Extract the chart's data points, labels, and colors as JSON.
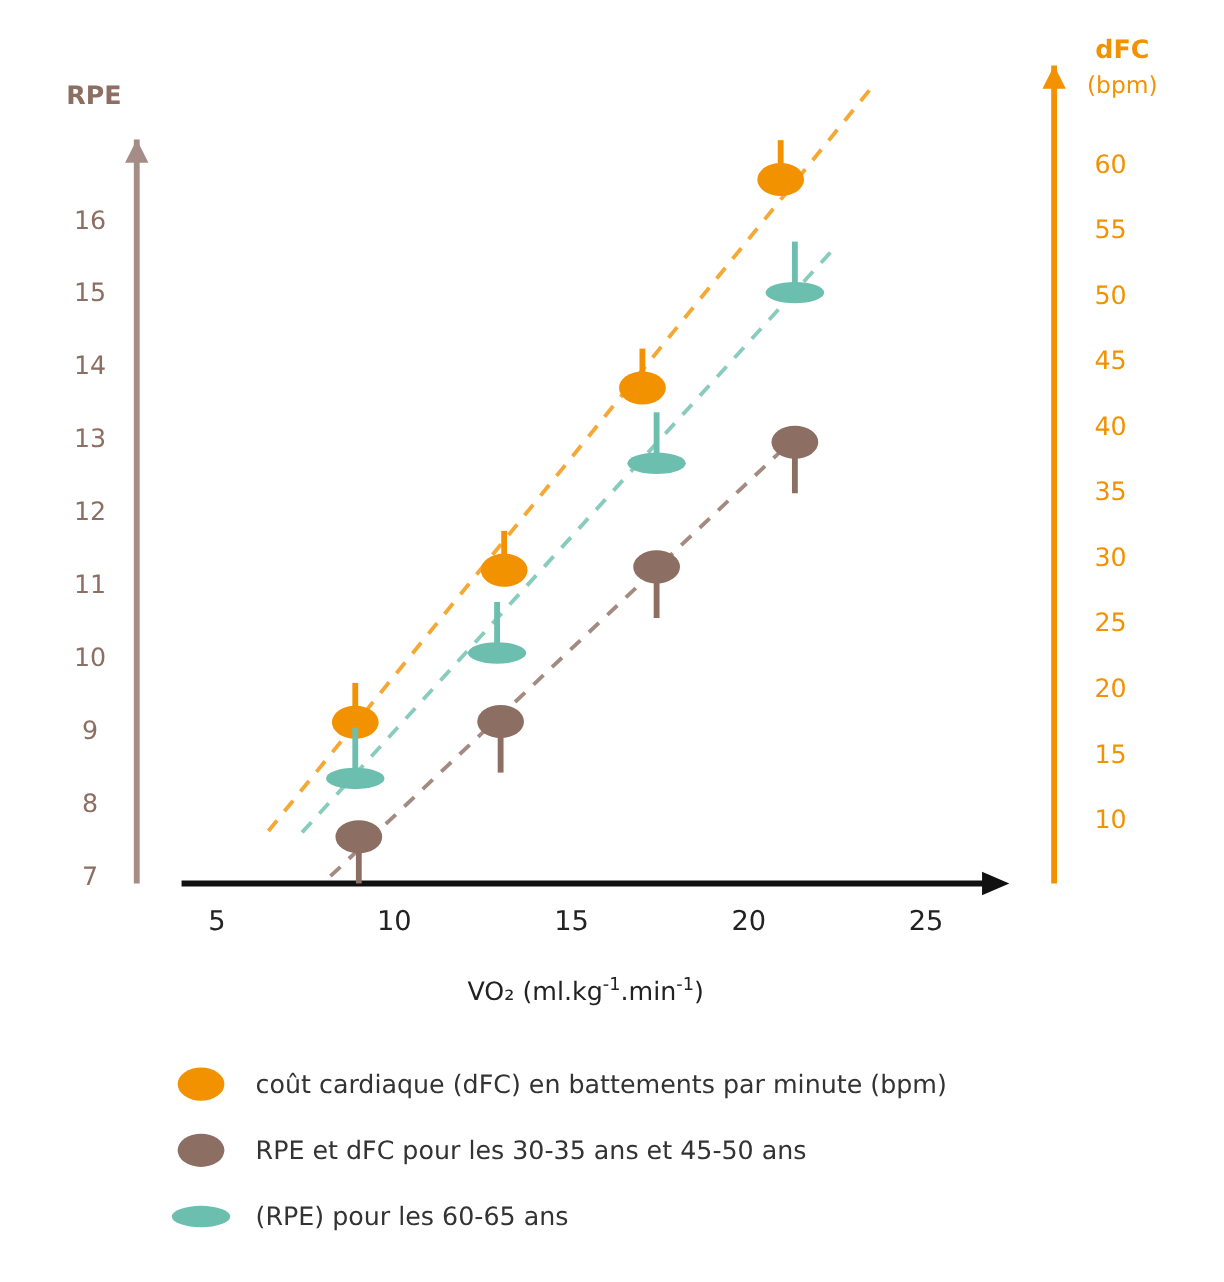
{
  "chart_data": {
    "type": "scatter",
    "xlabel": "VO₂ (ml.kg$^{-1}$.min$^{-1}$)",
    "ylabel": "RPE",
    "y2label": "dFC (bpm)",
    "xlim": [
      4,
      26.8
    ],
    "xticks": [
      5,
      10,
      15,
      20,
      25
    ],
    "ylim": [
      6.9,
      17.1
    ],
    "yticks": [
      7,
      8,
      9,
      10,
      11,
      12,
      13,
      14,
      15,
      16
    ],
    "y2lim": [
      5.1,
      67.5
    ],
    "y2ticks": [
      10,
      15,
      20,
      25,
      30,
      35,
      40,
      45,
      50,
      55,
      60
    ],
    "legend": "bottom",
    "marker": "circle",
    "grid": false,
    "series": [
      {
        "name": "coût cardiaque (dFC) en battements par minute (bpm)",
        "color": "#f39200",
        "axis": "y2",
        "x": [
          8.9,
          13.1,
          17.0,
          20.9
        ],
        "values": [
          17.4,
          29,
          42.9,
          58.8
        ],
        "errors": [
          [
            17.4,
            20.4
          ],
          [
            29,
            32
          ],
          [
            42.9,
            45.9
          ],
          [
            58.8,
            61.8
          ]
        ]
      },
      {
        "name": "RPE et dFC pour les 30-35 ans et 45-50 ans",
        "color": "#8c6e63",
        "x": [
          9.0,
          13.0,
          17.4,
          21.3
        ],
        "values": [
          7.54,
          9.12,
          11.24,
          12.95
        ],
        "errors": [
          [
            6.9,
            7.54
          ],
          [
            8.42,
            9.12
          ],
          [
            10.54,
            11.24
          ],
          [
            12.25,
            12.95
          ]
        ]
      },
      {
        "name": "(RPE) pour les 60-65 ans",
        "color": "#6cbfae",
        "x": [
          8.9,
          12.9,
          17.4,
          21.3
        ],
        "values": [
          8.34,
          10.06,
          12.66,
          15.0
        ],
        "errors": [
          [
            8.34,
            9.04
          ],
          [
            10.06,
            10.76
          ],
          [
            12.66,
            13.36
          ],
          [
            15.0,
            15.7
          ]
        ]
      },
      {
        "type": "line",
        "line_style": "dashed",
        "marker": "none",
        "color": "#f39200",
        "axis": "y2",
        "x": [
          6.45,
          23.4
        ],
        "values": [
          9.1,
          65.6
        ]
      },
      {
        "type": "line",
        "line_style": "dashed",
        "marker": "none",
        "color": "#8c6e63",
        "x": [
          8.2,
          21.5
        ],
        "values": [
          7.0,
          13.1
        ]
      },
      {
        "type": "line",
        "line_style": "dashed",
        "marker": "none",
        "color": "#6cbfae",
        "x": [
          7.4,
          22.3
        ],
        "values": [
          7.6,
          15.55
        ]
      }
    ]
  }
}
